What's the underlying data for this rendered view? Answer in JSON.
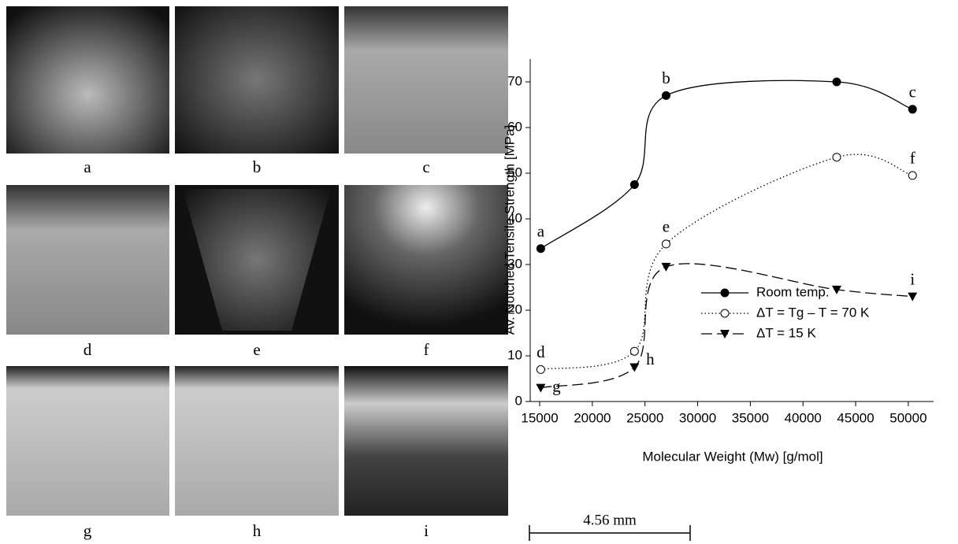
{
  "figure": {
    "panels": [
      "a",
      "b",
      "c",
      "d",
      "e",
      "f",
      "g",
      "h",
      "i"
    ],
    "scale_bar": "4.56 mm"
  },
  "chart_data": {
    "type": "line",
    "x_label": "Molecular Weight (Mw) [g/mol]",
    "y_label": "Av. Notched Tensile Strength  [MPa]",
    "x": [
      15100,
      24000,
      27000,
      43200,
      50400
    ],
    "series": [
      {
        "name": "Room temp.",
        "color": "#000000",
        "style": "solid",
        "marker": "filled-circle",
        "values": [
          33.5,
          47.5,
          67,
          70,
          64
        ],
        "point_labels": [
          "a",
          null,
          "b",
          null,
          "c"
        ]
      },
      {
        "name": "ΔT = Tg – T = 70 K",
        "color": "#000000",
        "style": "dotted",
        "marker": "open-circle",
        "values": [
          7,
          11,
          34.5,
          53.5,
          49.5
        ],
        "point_labels": [
          "d",
          "h",
          "e",
          null,
          "f"
        ]
      },
      {
        "name": "ΔT = 15 K",
        "color": "#000000",
        "style": "dashed",
        "marker": "triangle-down",
        "values": [
          3,
          7.5,
          29.5,
          24.5,
          23
        ],
        "point_labels": [
          "g",
          null,
          null,
          null,
          "i"
        ]
      }
    ],
    "xlim": [
      14100,
      52400
    ],
    "ylim": [
      0,
      75
    ],
    "xticks": [
      15000,
      20000,
      25000,
      30000,
      35000,
      40000,
      45000,
      50000
    ],
    "yticks": [
      0,
      10,
      20,
      30,
      40,
      50,
      60,
      70
    ],
    "grid": false,
    "legend": "lower-right"
  }
}
